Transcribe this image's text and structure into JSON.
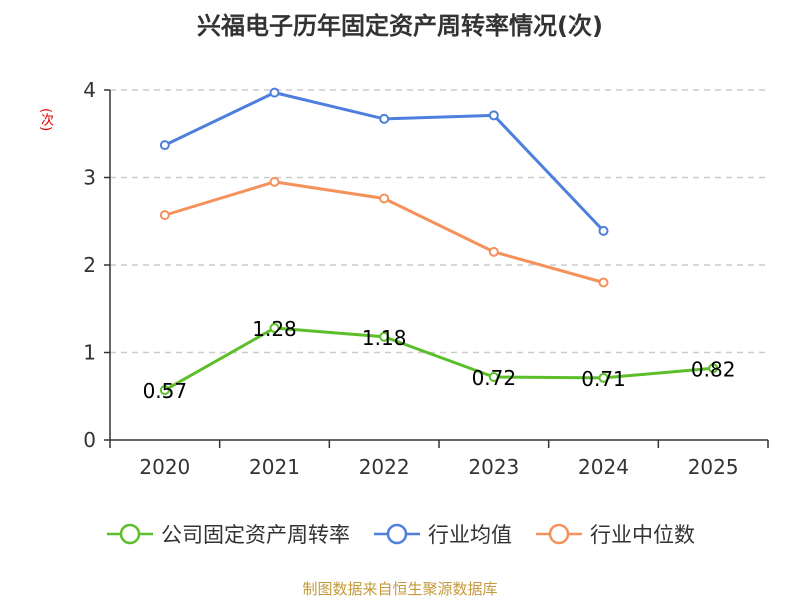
{
  "chart_data": {
    "type": "line",
    "title": "兴福电子历年固定资产周转率情况(次)",
    "ylabel": "(次)",
    "categories": [
      "2020",
      "2021",
      "2022",
      "2023",
      "2024",
      "2025"
    ],
    "ylim": [
      0,
      4
    ],
    "yticks": [
      0,
      1,
      2,
      3,
      4
    ],
    "grid": true,
    "legend_position": "bottom",
    "series": [
      {
        "name": "公司固定资产周转率",
        "color": "#5cbf2a",
        "show_labels": true,
        "values": [
          0.57,
          1.28,
          1.18,
          0.72,
          0.71,
          0.82
        ]
      },
      {
        "name": "行业均值",
        "color": "#4e7fdc",
        "show_labels": false,
        "values": [
          3.37,
          3.97,
          3.67,
          3.71,
          2.39,
          null
        ]
      },
      {
        "name": "行业中位数",
        "color": "#f5915a",
        "show_labels": false,
        "values": [
          2.57,
          2.95,
          2.76,
          2.15,
          1.8,
          null
        ]
      }
    ]
  },
  "source": "制图数据来自恒生聚源数据库"
}
